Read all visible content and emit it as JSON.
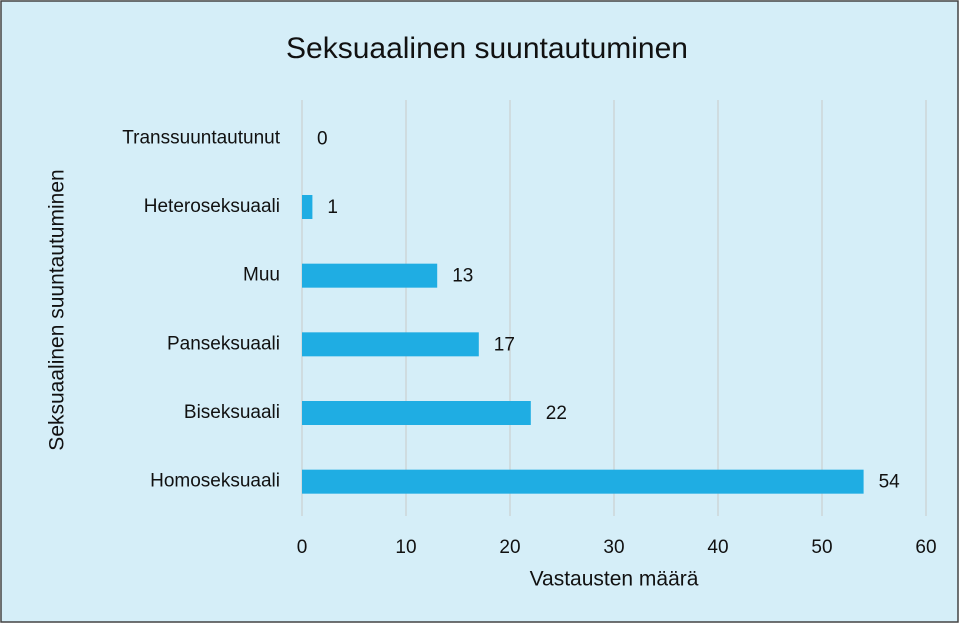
{
  "chart_data": {
    "type": "bar",
    "orientation": "horizontal",
    "title": "Seksuaalinen suuntautuminen",
    "x_label": "Vastausten määrä",
    "y_label": "Seksuaalinen suuntautuminen",
    "categories": [
      "Transsuuntautunut",
      "Heteroseksuaali",
      "Muu",
      "Panseksuaali",
      "Biseksuaali",
      "Homoseksuaali"
    ],
    "values": [
      0,
      1,
      13,
      17,
      22,
      54
    ],
    "color": "#1fade3",
    "xlim": [
      0,
      60
    ],
    "xticks": [
      0,
      10,
      20,
      30,
      40,
      50,
      60
    ],
    "grid": true
  }
}
